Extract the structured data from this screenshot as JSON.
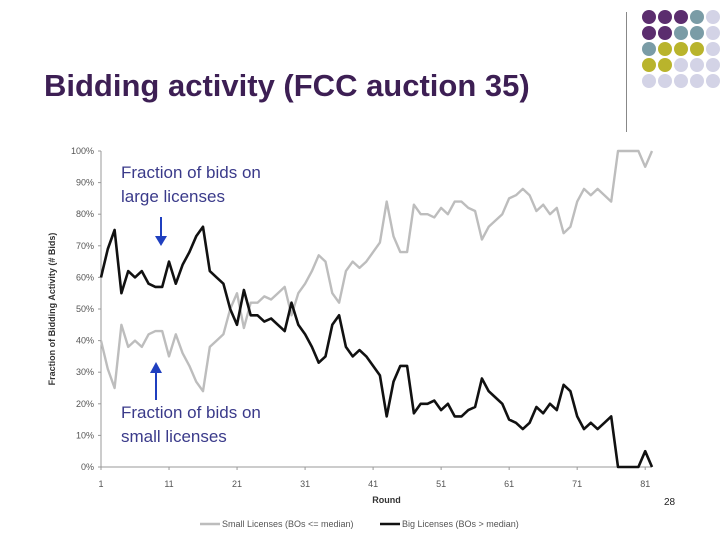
{
  "slide": {
    "title": "Bidding activity (FCC auction 35)",
    "slide_number": "28",
    "annotation_top": [
      "Fraction of bids on",
      "large licenses"
    ],
    "annotation_bottom": [
      "Fraction of bids on",
      "small licenses"
    ],
    "accent_colors": {
      "purple": "#5b2d6e",
      "teal": "#7a9ca6",
      "olive": "#b9b42c",
      "lavender": "#d3d3e6",
      "title": "#3d1f54",
      "arrow": "#1f3fbf"
    },
    "decor_dots": [
      [
        "purple",
        "purple",
        "purple",
        "teal",
        "lavender"
      ],
      [
        "purple",
        "purple",
        "teal",
        "teal",
        "lavender"
      ],
      [
        "teal",
        "olive",
        "olive",
        "olive",
        "lavender"
      ],
      [
        "olive",
        "olive",
        "lavender",
        "lavender",
        "lavender"
      ],
      [
        "lavender",
        "lavender",
        "lavender",
        "lavender",
        "lavender"
      ]
    ]
  },
  "chart_data": {
    "type": "line",
    "xlabel": "Round",
    "ylabel": "Fraction of Bidding Activity (# Bids)",
    "xlim": [
      1,
      82
    ],
    "ylim": [
      0,
      1
    ],
    "x_ticks": [
      "1",
      "11",
      "21",
      "31",
      "41",
      "51",
      "61",
      "71",
      "81"
    ],
    "y_ticks": [
      "0%",
      "10%",
      "20%",
      "30%",
      "40%",
      "50%",
      "60%",
      "70%",
      "80%",
      "90%",
      "100%"
    ],
    "grid": false,
    "legend_position": "bottom",
    "series": [
      {
        "name": "Small Licenses (BOs <= median)",
        "color": "#bdbdbd",
        "values": [
          0.4,
          0.31,
          0.25,
          0.45,
          0.38,
          0.4,
          0.38,
          0.42,
          0.43,
          0.43,
          0.35,
          0.42,
          0.36,
          0.32,
          0.27,
          0.24,
          0.38,
          0.4,
          0.42,
          0.5,
          0.55,
          0.44,
          0.52,
          0.52,
          0.54,
          0.53,
          0.55,
          0.57,
          0.48,
          0.55,
          0.58,
          0.62,
          0.67,
          0.65,
          0.55,
          0.52,
          0.62,
          0.65,
          0.63,
          0.65,
          0.68,
          0.71,
          0.84,
          0.73,
          0.68,
          0.68,
          0.83,
          0.8,
          0.8,
          0.79,
          0.82,
          0.8,
          0.84,
          0.84,
          0.82,
          0.81,
          0.72,
          0.76,
          0.78,
          0.8,
          0.85,
          0.86,
          0.88,
          0.86,
          0.81,
          0.83,
          0.8,
          0.82,
          0.74,
          0.76,
          0.84,
          0.88,
          0.86,
          0.88,
          0.86,
          0.84,
          1.0,
          1.0,
          1.0,
          1.0,
          0.95,
          1.0
        ]
      },
      {
        "name": "Big Licenses (BOs > median)",
        "color": "#111111",
        "values": [
          0.6,
          0.69,
          0.75,
          0.55,
          0.62,
          0.6,
          0.62,
          0.58,
          0.57,
          0.57,
          0.65,
          0.58,
          0.64,
          0.68,
          0.73,
          0.76,
          0.62,
          0.6,
          0.58,
          0.5,
          0.45,
          0.56,
          0.48,
          0.48,
          0.46,
          0.47,
          0.45,
          0.43,
          0.52,
          0.45,
          0.42,
          0.38,
          0.33,
          0.35,
          0.45,
          0.48,
          0.38,
          0.35,
          0.37,
          0.35,
          0.32,
          0.29,
          0.16,
          0.27,
          0.32,
          0.32,
          0.17,
          0.2,
          0.2,
          0.21,
          0.18,
          0.2,
          0.16,
          0.16,
          0.18,
          0.19,
          0.28,
          0.24,
          0.22,
          0.2,
          0.15,
          0.14,
          0.12,
          0.14,
          0.19,
          0.17,
          0.2,
          0.18,
          0.26,
          0.24,
          0.16,
          0.12,
          0.14,
          0.12,
          0.14,
          0.16,
          0.0,
          0.0,
          0.0,
          0.0,
          0.05,
          0.0
        ]
      }
    ]
  }
}
